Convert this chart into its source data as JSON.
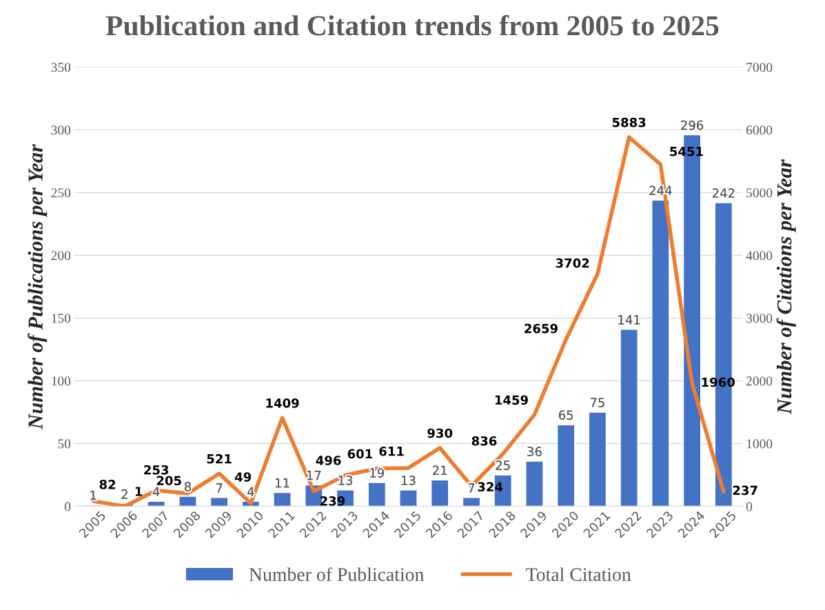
{
  "chart_data": {
    "type": "bar",
    "title": "Publication and Citation trends from 2005 to 2025",
    "ylabel": "Number of Publications per Year",
    "y2label": "Number of Citations per Year",
    "categories": [
      "2005",
      "2006",
      "2007",
      "2008",
      "2009",
      "2010",
      "2011",
      "2012",
      "2013",
      "2014",
      "2015",
      "2016",
      "2017",
      "2018",
      "2019",
      "2020",
      "2021",
      "2022",
      "2023",
      "2024",
      "2025"
    ],
    "series": [
      {
        "name": "Number of Publication",
        "color": "#4472c4",
        "values": [
          1,
          2,
          4,
          8,
          7,
          4,
          11,
          17,
          13,
          19,
          13,
          21,
          7,
          25,
          36,
          65,
          75,
          141,
          244,
          296,
          242
        ]
      },
      {
        "name": "Total Citation",
        "type": "line",
        "axis": "y2",
        "color": "#ed7d31",
        "values": [
          82,
          1,
          253,
          205,
          521,
          49,
          1409,
          239,
          496,
          601,
          611,
          930,
          324,
          836,
          1459,
          2659,
          3702,
          5883,
          5451,
          1960,
          237
        ]
      }
    ],
    "ylim": [
      0,
      350
    ],
    "yticks": [
      0,
      50,
      100,
      150,
      200,
      250,
      300,
      350
    ],
    "y2lim": [
      0,
      7000
    ],
    "y2ticks": [
      0,
      1000,
      2000,
      3000,
      4000,
      5000,
      6000,
      7000
    ],
    "data_labels": true,
    "grid": "y",
    "legend": "bottom",
    "marker": "none",
    "line_style": "solid"
  }
}
